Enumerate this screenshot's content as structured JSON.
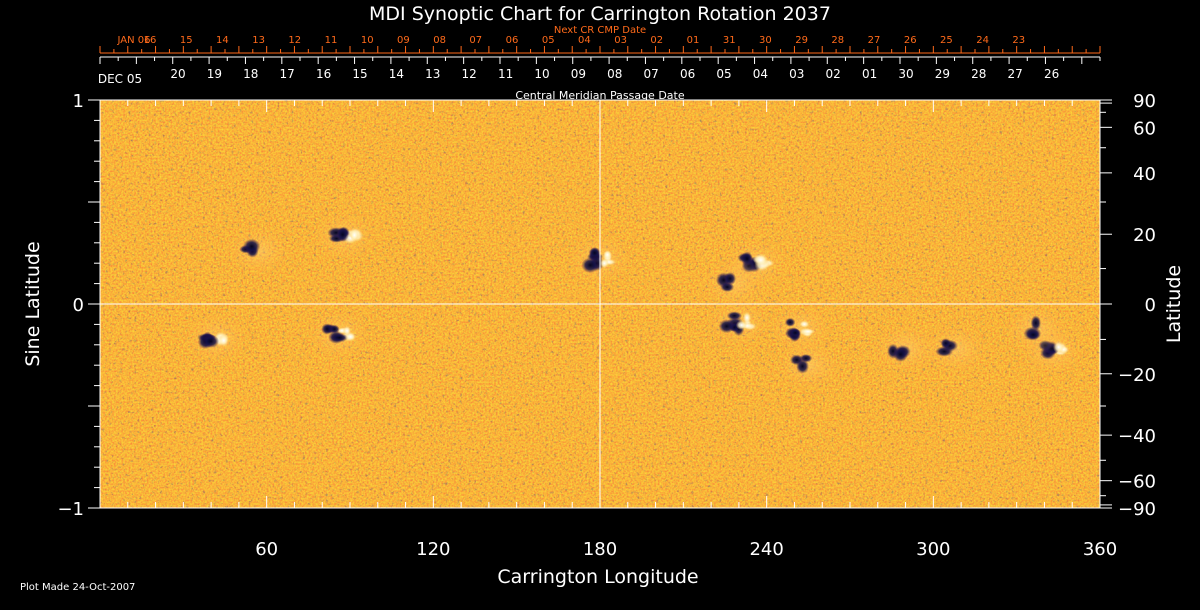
{
  "chart_data": {
    "type": "heatmap",
    "title": "MDI Synoptic Chart for Carrington Rotation 2037",
    "top_axis_label": "Next CR CMP Date",
    "top_axis_ticks": [
      "JAN 06",
      "16",
      "15",
      "14",
      "13",
      "12",
      "11",
      "10",
      "09",
      "08",
      "07",
      "06",
      "05",
      "04",
      "03",
      "02",
      "01",
      "31",
      "30",
      "29",
      "28",
      "27",
      "26",
      "25",
      "24",
      "23"
    ],
    "cmp_axis_label": "Central Meridian Passage Date",
    "cmp_axis_ticks": [
      "DEC 05",
      "20",
      "19",
      "18",
      "17",
      "16",
      "15",
      "14",
      "13",
      "12",
      "11",
      "10",
      "09",
      "08",
      "07",
      "06",
      "05",
      "04",
      "03",
      "02",
      "01",
      "30",
      "29",
      "28",
      "27",
      "26"
    ],
    "xlabel": "Carrington Longitude",
    "xlim": [
      0,
      360
    ],
    "x_ticks": [
      "60",
      "120",
      "180",
      "240",
      "300",
      "360"
    ],
    "ylabel": "Sine Latitude",
    "ylim": [
      -1,
      1
    ],
    "y_ticks": [
      "1",
      "0",
      "-1"
    ],
    "y2label": "Latitude",
    "y2_ticks": [
      "90",
      "60",
      "40",
      "20",
      "0",
      "-20",
      "-40",
      "-60",
      "-90"
    ],
    "colors": {
      "background_field": "#e8441a",
      "positive": "#ffffff",
      "negative": "#0a0a3a",
      "axis": "#ffffff",
      "top_axis": "#ff6a1a"
    },
    "active_regions": [
      {
        "lon": 88,
        "sinlat": 0.33,
        "type": "bipole"
      },
      {
        "lon": 57,
        "sinlat": 0.26,
        "type": "negative"
      },
      {
        "lon": 180,
        "sinlat": 0.22,
        "type": "bipole"
      },
      {
        "lon": 236,
        "sinlat": 0.2,
        "type": "bipole"
      },
      {
        "lon": 228,
        "sinlat": 0.1,
        "type": "negative"
      },
      {
        "lon": 86,
        "sinlat": -0.15,
        "type": "bipole"
      },
      {
        "lon": 42,
        "sinlat": -0.17,
        "type": "bipole"
      },
      {
        "lon": 230,
        "sinlat": -0.09,
        "type": "bipole"
      },
      {
        "lon": 252,
        "sinlat": -0.12,
        "type": "bipole"
      },
      {
        "lon": 255,
        "sinlat": -0.3,
        "type": "negative"
      },
      {
        "lon": 290,
        "sinlat": -0.22,
        "type": "negative"
      },
      {
        "lon": 308,
        "sinlat": -0.22,
        "type": "negative"
      },
      {
        "lon": 343,
        "sinlat": -0.23,
        "type": "bipole"
      },
      {
        "lon": 337,
        "sinlat": -0.12,
        "type": "negative"
      }
    ]
  },
  "footer": {
    "plot_made": "Plot Made 24-Oct-2007"
  }
}
